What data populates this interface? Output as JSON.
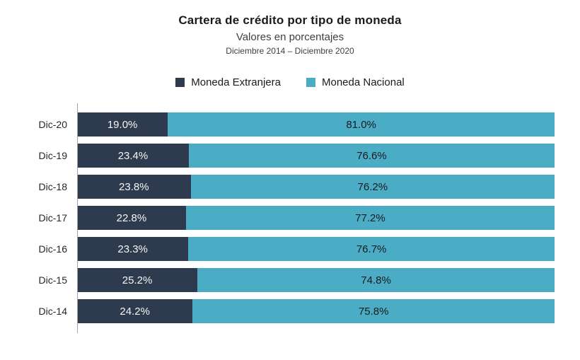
{
  "header": {
    "title": "Cartera de crédito por tipo de moneda",
    "subtitle": "Valores en porcentajes",
    "date_range": "Diciembre 2014 – Diciembre 2020"
  },
  "legend": [
    {
      "label": "Moneda Extranjera",
      "color": "#2E3A4D"
    },
    {
      "label": "Moneda Nacional",
      "color": "#4BACC6"
    }
  ],
  "colors": {
    "extranjera": "#2E3A4D",
    "nacional": "#4BACC6",
    "axis": "#A6A6A6",
    "label_on_dark": "#F5F5F5",
    "label_on_teal": "#1A1A1A"
  },
  "chart_data": {
    "type": "bar",
    "orientation": "horizontal",
    "stacked": true,
    "title": "Cartera de crédito por tipo de moneda",
    "subtitle": "Valores en porcentajes",
    "period": "Diciembre 2014 – Diciembre 2020",
    "categories": [
      "Dic-20",
      "Dic-19",
      "Dic-18",
      "Dic-17",
      "Dic-16",
      "Dic-15",
      "Dic-14"
    ],
    "series": [
      {
        "name": "Moneda Extranjera",
        "color": "#2E3A4D",
        "values": [
          19.0,
          23.4,
          23.8,
          22.8,
          23.3,
          25.2,
          24.2
        ]
      },
      {
        "name": "Moneda Nacional",
        "color": "#4BACC6",
        "values": [
          81.0,
          76.6,
          76.2,
          77.2,
          76.7,
          74.8,
          75.8
        ]
      }
    ],
    "value_format": "one_decimal_percent",
    "xlim": [
      0,
      100
    ],
    "grid": false,
    "legend_position": "top"
  }
}
